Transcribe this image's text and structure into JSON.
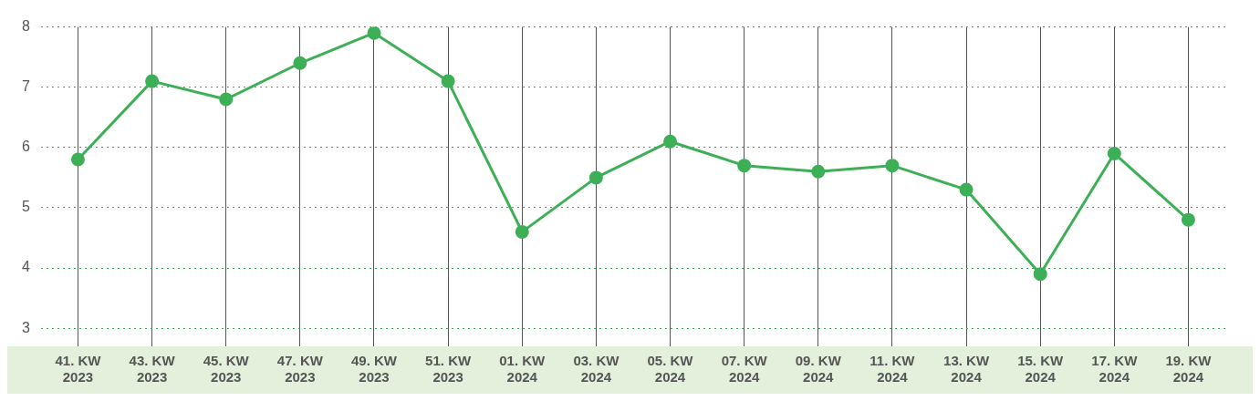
{
  "chart_data": {
    "type": "line",
    "categories": [
      "41. KW\n2023",
      "43. KW\n2023",
      "45. KW\n2023",
      "47. KW\n2023",
      "49. KW\n2023",
      "51. KW\n2023",
      "01. KW\n2024",
      "03. KW\n2024",
      "05. KW\n2024",
      "07. KW\n2024",
      "09. KW\n2024",
      "11. KW\n2024",
      "13. KW\n2024",
      "15. KW\n2024",
      "17. KW\n2024",
      "19. KW\n2024"
    ],
    "series": [
      {
        "color": "#3daf57",
        "values": [
          5.8,
          7.1,
          6.8,
          7.4,
          7.9,
          7.1,
          4.6,
          5.5,
          6.1,
          5.7,
          5.6,
          5.7,
          5.3,
          3.9,
          5.9,
          4.8
        ]
      }
    ],
    "ylim": [
      2.7,
      8
    ],
    "yticks": [
      3,
      4,
      5,
      6,
      7,
      8
    ],
    "grid": true,
    "marker": "circle",
    "line_style": "solid",
    "legend": false
  }
}
